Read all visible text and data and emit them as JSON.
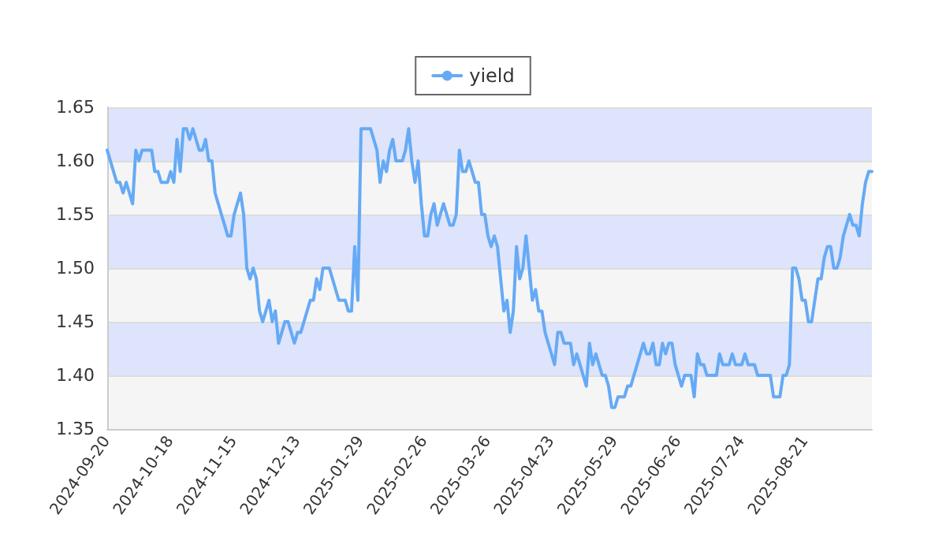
{
  "chart_data": {
    "type": "line",
    "categories": [
      "2024-09-20",
      null,
      null,
      null,
      null,
      null,
      null,
      null,
      null,
      null,
      null,
      null,
      null,
      null,
      null,
      null,
      null,
      null,
      null,
      null,
      "2024-10-18",
      null,
      null,
      null,
      null,
      null,
      null,
      null,
      null,
      null,
      null,
      null,
      null,
      null,
      null,
      null,
      null,
      null,
      null,
      null,
      "2024-11-15",
      null,
      null,
      null,
      null,
      null,
      null,
      null,
      null,
      null,
      null,
      null,
      null,
      null,
      null,
      null,
      null,
      null,
      null,
      null,
      "2024-12-13",
      null,
      null,
      null,
      null,
      null,
      null,
      null,
      null,
      null,
      null,
      null,
      null,
      null,
      null,
      null,
      null,
      null,
      null,
      null,
      "2025-01-29",
      null,
      null,
      null,
      null,
      null,
      null,
      null,
      null,
      null,
      null,
      null,
      null,
      null,
      null,
      null,
      null,
      null,
      null,
      null,
      "2025-02-26",
      null,
      null,
      null,
      null,
      null,
      null,
      null,
      null,
      null,
      null,
      null,
      null,
      null,
      null,
      null,
      null,
      null,
      null,
      null,
      "2025-03-26",
      null,
      null,
      null,
      null,
      null,
      null,
      null,
      null,
      null,
      null,
      null,
      null,
      null,
      null,
      null,
      null,
      null,
      null,
      null,
      "2025-04-23",
      null,
      null,
      null,
      null,
      null,
      null,
      null,
      null,
      null,
      null,
      null,
      null,
      null,
      null,
      null,
      null,
      null,
      null,
      null,
      "2025-05-29",
      null,
      null,
      null,
      null,
      null,
      null,
      null,
      null,
      null,
      null,
      null,
      null,
      null,
      null,
      null,
      null,
      null,
      null,
      null,
      "2025-06-26",
      null,
      null,
      null,
      null,
      null,
      null,
      null,
      null,
      null,
      null,
      null,
      null,
      null,
      null,
      null,
      null,
      null,
      null,
      null,
      "2025-07-24",
      null,
      null,
      null,
      null,
      null,
      null,
      null,
      null,
      null,
      null,
      null,
      null,
      null,
      null,
      null,
      null,
      null,
      null,
      null,
      "2025-08-21",
      null,
      null,
      null,
      null,
      null,
      null,
      null,
      null,
      null,
      null,
      null,
      null,
      null,
      null,
      null,
      null,
      null,
      null,
      null,
      null,
      null
    ],
    "series": [
      {
        "name": "yield",
        "color": "#66aaf5",
        "values": [
          1.61,
          1.6,
          1.59,
          1.58,
          1.58,
          1.57,
          1.58,
          1.57,
          1.56,
          1.61,
          1.6,
          1.61,
          1.61,
          1.61,
          1.61,
          1.59,
          1.59,
          1.58,
          1.58,
          1.58,
          1.59,
          1.58,
          1.62,
          1.59,
          1.63,
          1.63,
          1.62,
          1.63,
          1.62,
          1.61,
          1.61,
          1.62,
          1.6,
          1.6,
          1.57,
          1.56,
          1.55,
          1.54,
          1.53,
          1.53,
          1.55,
          1.56,
          1.57,
          1.55,
          1.5,
          1.49,
          1.5,
          1.49,
          1.46,
          1.45,
          1.46,
          1.47,
          1.45,
          1.46,
          1.43,
          1.44,
          1.45,
          1.45,
          1.44,
          1.43,
          1.44,
          1.44,
          1.45,
          1.46,
          1.47,
          1.47,
          1.49,
          1.48,
          1.5,
          1.5,
          1.5,
          1.49,
          1.48,
          1.47,
          1.47,
          1.47,
          1.46,
          1.46,
          1.52,
          1.47,
          1.63,
          1.63,
          1.63,
          1.63,
          1.62,
          1.61,
          1.58,
          1.6,
          1.59,
          1.61,
          1.62,
          1.6,
          1.6,
          1.6,
          1.61,
          1.63,
          1.6,
          1.58,
          1.6,
          1.56,
          1.53,
          1.53,
          1.55,
          1.56,
          1.54,
          1.55,
          1.56,
          1.55,
          1.54,
          1.54,
          1.55,
          1.61,
          1.59,
          1.59,
          1.6,
          1.59,
          1.58,
          1.58,
          1.55,
          1.55,
          1.53,
          1.52,
          1.53,
          1.52,
          1.49,
          1.46,
          1.47,
          1.44,
          1.46,
          1.52,
          1.49,
          1.5,
          1.53,
          1.5,
          1.47,
          1.48,
          1.46,
          1.46,
          1.44,
          1.43,
          1.42,
          1.41,
          1.44,
          1.44,
          1.43,
          1.43,
          1.43,
          1.41,
          1.42,
          1.41,
          1.4,
          1.39,
          1.43,
          1.41,
          1.42,
          1.41,
          1.4,
          1.4,
          1.39,
          1.37,
          1.37,
          1.38,
          1.38,
          1.38,
          1.39,
          1.39,
          1.4,
          1.41,
          1.42,
          1.43,
          1.42,
          1.42,
          1.43,
          1.41,
          1.41,
          1.43,
          1.42,
          1.43,
          1.43,
          1.41,
          1.4,
          1.39,
          1.4,
          1.4,
          1.4,
          1.38,
          1.42,
          1.41,
          1.41,
          1.4,
          1.4,
          1.4,
          1.4,
          1.42,
          1.41,
          1.41,
          1.41,
          1.42,
          1.41,
          1.41,
          1.41,
          1.42,
          1.41,
          1.41,
          1.41,
          1.4,
          1.4,
          1.4,
          1.4,
          1.4,
          1.38,
          1.38,
          1.38,
          1.4,
          1.4,
          1.41,
          1.5,
          1.5,
          1.49,
          1.47,
          1.47,
          1.45,
          1.45,
          1.47,
          1.49,
          1.49,
          1.51,
          1.52,
          1.52,
          1.5,
          1.5,
          1.51,
          1.53,
          1.54,
          1.55,
          1.54,
          1.54,
          1.53,
          1.56,
          1.58,
          1.59,
          1.59
        ]
      }
    ],
    "ylim": [
      1.35,
      1.65
    ],
    "yticks": [
      {
        "value": 1.35,
        "label": "1.35"
      },
      {
        "value": 1.4,
        "label": "1.40"
      },
      {
        "value": 1.45,
        "label": "1.45"
      },
      {
        "value": 1.5,
        "label": "1.50"
      },
      {
        "value": 1.55,
        "label": "1.55"
      },
      {
        "value": 1.6,
        "label": "1.60"
      },
      {
        "value": 1.65,
        "label": "1.65"
      }
    ],
    "grid": true,
    "legend": "top",
    "marker": "none",
    "line_style": "solid"
  }
}
